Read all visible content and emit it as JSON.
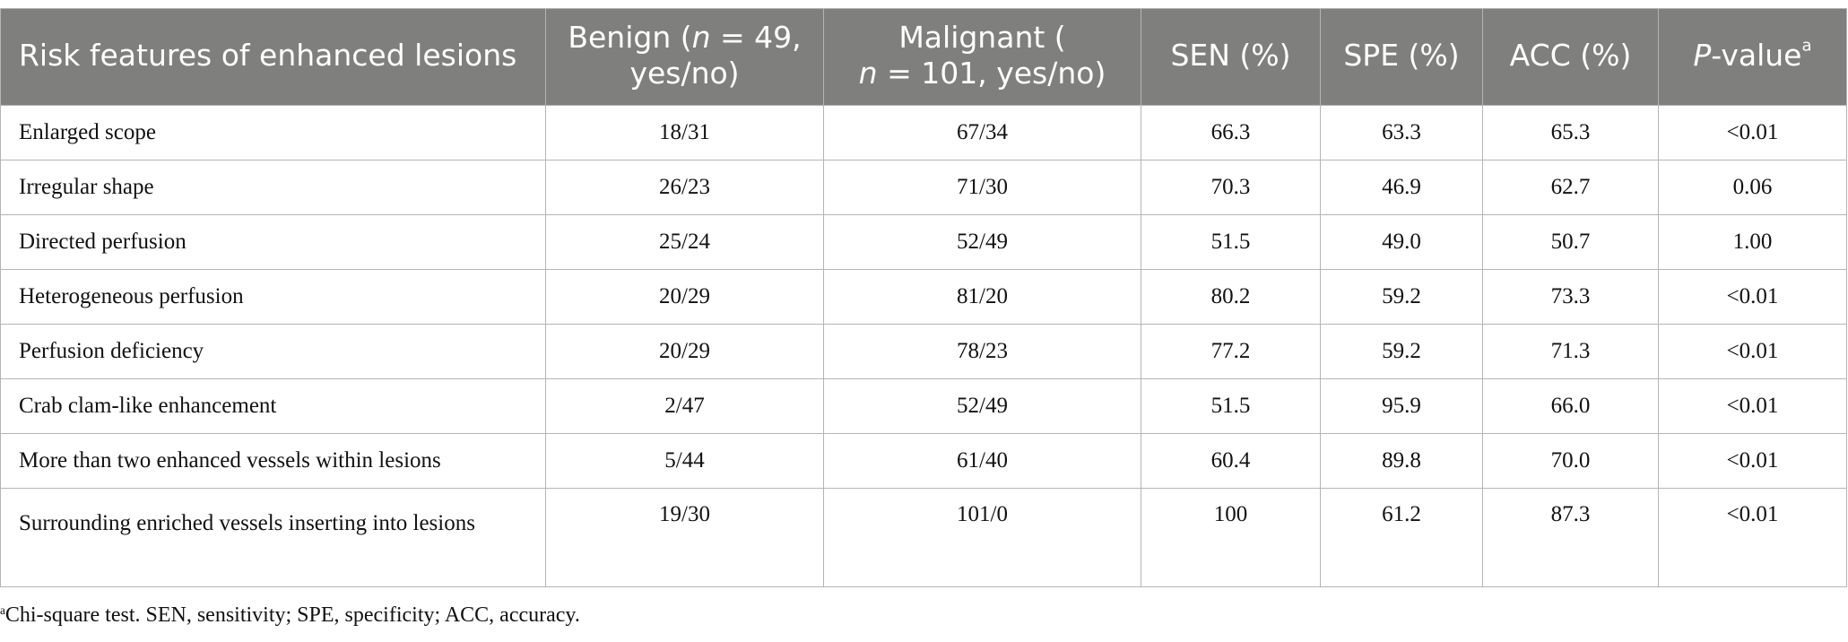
{
  "table": {
    "headers": {
      "feature": "Risk features of enhanced lesions",
      "benign": {
        "pre": "Benign (",
        "n": "n",
        "post": " = 49, yes/no)"
      },
      "malignant": {
        "pre": "Malignant (",
        "n": "n",
        "post": " = 101, yes/no)"
      },
      "sen": "SEN (%)",
      "spe": "SPE (%)",
      "acc": "ACC (%)",
      "pvalue": {
        "p": "P",
        "rest": "-value",
        "sup": "a"
      }
    },
    "rows": [
      {
        "feature": "Enlarged scope",
        "benign": "18/31",
        "malignant": "67/34",
        "sen": "66.3",
        "spe": "63.3",
        "acc": "65.3",
        "p": "<0.01"
      },
      {
        "feature": "Irregular shape",
        "benign": "26/23",
        "malignant": "71/30",
        "sen": "70.3",
        "spe": "46.9",
        "acc": "62.7",
        "p": "0.06"
      },
      {
        "feature": "Directed perfusion",
        "benign": "25/24",
        "malignant": "52/49",
        "sen": "51.5",
        "spe": "49.0",
        "acc": "50.7",
        "p": "1.00"
      },
      {
        "feature": "Heterogeneous perfusion",
        "benign": "20/29",
        "malignant": "81/20",
        "sen": "80.2",
        "spe": "59.2",
        "acc": "73.3",
        "p": "<0.01"
      },
      {
        "feature": "Perfusion deficiency",
        "benign": "20/29",
        "malignant": "78/23",
        "sen": "77.2",
        "spe": "59.2",
        "acc": "71.3",
        "p": "<0.01"
      },
      {
        "feature": "Crab clam-like enhancement",
        "benign": "2/47",
        "malignant": "52/49",
        "sen": "51.5",
        "spe": "95.9",
        "acc": "66.0",
        "p": "<0.01"
      },
      {
        "feature": "More than two enhanced vessels within lesions",
        "benign": "5/44",
        "malignant": "61/40",
        "sen": "60.4",
        "spe": "89.8",
        "acc": "70.0",
        "p": "<0.01"
      },
      {
        "feature": "Surrounding enriched vessels inserting into lesions",
        "benign": "19/30",
        "malignant": "101/0",
        "sen": "100",
        "spe": "61.2",
        "acc": "87.3",
        "p": "<0.01"
      }
    ]
  },
  "footnote": {
    "sup": "a",
    "text": "Chi-square test. SEN, sensitivity; SPE, specificity; ACC, accuracy."
  }
}
